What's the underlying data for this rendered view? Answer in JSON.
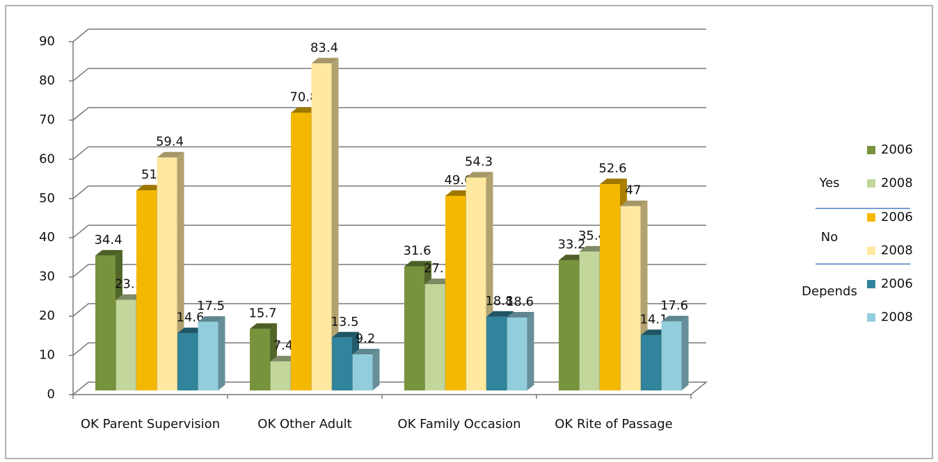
{
  "chart_data": {
    "type": "bar3d",
    "categories": [
      "OK Parent Supervision",
      "OK Other Adult",
      "OK Family Occasion",
      "OK Rite of Passage"
    ],
    "series": [
      {
        "name": "2006",
        "group": "Yes",
        "color": "#77933c",
        "values": [
          34.4,
          15.7,
          31.6,
          33.2
        ]
      },
      {
        "name": "2008",
        "group": "Yes",
        "color": "#c3d69b",
        "values": [
          23.1,
          7.4,
          27.1,
          35.4
        ]
      },
      {
        "name": "2006",
        "group": "No",
        "color": "#f5b800",
        "values": [
          51,
          70.8,
          49.6,
          52.6
        ]
      },
      {
        "name": "2008",
        "group": "No",
        "color": "#ffe8a0",
        "values": [
          59.4,
          83.4,
          54.3,
          47
        ]
      },
      {
        "name": "2006",
        "group": "Depends",
        "color": "#31849b",
        "values": [
          14.6,
          13.5,
          18.8,
          14.1
        ]
      },
      {
        "name": "2008",
        "group": "Depends",
        "color": "#92cddc",
        "values": [
          17.5,
          9.2,
          18.6,
          17.6
        ]
      }
    ],
    "ylim": [
      0,
      90
    ],
    "yticks": [
      0,
      10,
      20,
      30,
      40,
      50,
      60,
      70,
      80,
      90
    ],
    "grid": true
  }
}
